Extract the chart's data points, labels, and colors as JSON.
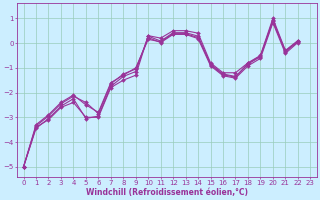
{
  "xlabel": "Windchill (Refroidissement éolien,°C)",
  "background_color": "#cceeff",
  "line_color": "#993399",
  "grid_color": "#99ccbb",
  "xlim": [
    -0.5,
    23.5
  ],
  "ylim": [
    -5.4,
    1.6
  ],
  "xticks": [
    0,
    1,
    2,
    3,
    4,
    5,
    6,
    7,
    8,
    9,
    10,
    11,
    12,
    13,
    14,
    15,
    16,
    17,
    18,
    19,
    20,
    21,
    22,
    23
  ],
  "yticks": [
    -5,
    -4,
    -3,
    -2,
    -1,
    0,
    1
  ],
  "series": [
    [
      -5.0,
      -3.4,
      -3.1,
      -2.6,
      -2.4,
      -3.0,
      -3.0,
      -1.8,
      -1.5,
      -1.3,
      0.3,
      0.2,
      0.5,
      0.5,
      0.4,
      -0.8,
      -1.2,
      -1.2,
      -0.8,
      -0.5,
      1.0,
      -0.3,
      0.1
    ],
    [
      -5.0,
      -3.3,
      -2.9,
      -2.4,
      -2.1,
      -2.5,
      -2.8,
      -1.6,
      -1.3,
      -1.0,
      0.15,
      0.05,
      0.38,
      0.38,
      0.22,
      -0.85,
      -1.25,
      -1.35,
      -0.85,
      -0.55,
      0.88,
      -0.35,
      0.05
    ],
    [
      -5.0,
      -3.45,
      -3.05,
      -2.55,
      -2.25,
      -3.05,
      -2.95,
      -1.75,
      -1.35,
      -1.15,
      0.28,
      0.08,
      0.42,
      0.42,
      0.28,
      -0.88,
      -1.28,
      -1.38,
      -0.82,
      -0.52,
      0.92,
      -0.32,
      0.08
    ],
    [
      -5.0,
      -3.35,
      -2.95,
      -2.45,
      -2.15,
      -2.4,
      -2.85,
      -1.65,
      -1.25,
      -1.05,
      0.22,
      0.02,
      0.35,
      0.35,
      0.18,
      -0.92,
      -1.32,
      -1.42,
      -0.92,
      -0.62,
      0.82,
      -0.42,
      0.02
    ]
  ],
  "line_width": 0.8,
  "marker": "D",
  "marker_size": 2.0,
  "tick_fontsize": 5.0,
  "label_fontsize": 5.5,
  "fig_width": 3.2,
  "fig_height": 2.0,
  "dpi": 100
}
